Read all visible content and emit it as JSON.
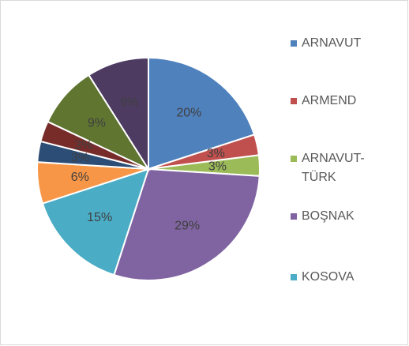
{
  "chart_data": {
    "type": "pie",
    "categories": [
      "ARNAVUT",
      "ARMEND",
      "ARNAVUT-TÜRK",
      "BOŞNAK",
      "KOSOVA",
      null,
      null,
      null,
      null,
      null
    ],
    "values": [
      20,
      3,
      3,
      29,
      15,
      6,
      3,
      3,
      9,
      9
    ],
    "value_labels": [
      "20%",
      "3%",
      "3%",
      "29%",
      "15%",
      "6%",
      "3%",
      "3%",
      "9%",
      "9%"
    ],
    "colors": [
      "#4f81bd",
      "#c0504d",
      "#9bbb59",
      "#8064a2",
      "#4bacc6",
      "#f79646",
      "#2c4d75",
      "#772c2a",
      "#5f7530",
      "#4d3b62"
    ],
    "legend": "right"
  }
}
